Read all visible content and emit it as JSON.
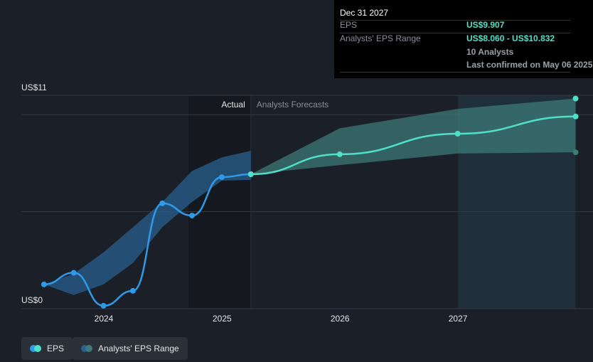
{
  "chart_data": {
    "type": "line",
    "y_unit_labels": [
      "US$0",
      "US$11"
    ],
    "ylim": [
      0,
      11
    ],
    "x_ticks": [
      "2024",
      "2025",
      "2026",
      "2027"
    ],
    "region_labels": {
      "actual": "Actual",
      "forecast": "Analysts Forecasts"
    },
    "series": [
      {
        "name": "EPS",
        "color": "#2f9be8",
        "points": [
          [
            "2023-06-30",
            1.25
          ],
          [
            "2023-09-30",
            1.85
          ],
          [
            "2023-12-31",
            0.15
          ],
          [
            "2024-03-31",
            0.92
          ],
          [
            "2024-06-30",
            5.43
          ],
          [
            "2024-09-30",
            4.8
          ],
          [
            "2024-12-31",
            6.78
          ],
          [
            "2025-03-31",
            6.93
          ]
        ]
      },
      {
        "color": "#4fe0c8",
        "points": [
          [
            "2025-03-31",
            6.93
          ],
          [
            "2025-12-31",
            7.96
          ],
          [
            "2026-12-31",
            9.02
          ],
          [
            "2027-12-31",
            9.907
          ]
        ]
      }
    ],
    "range_actual": [
      [
        "2023-06-30",
        1.25,
        1.25
      ],
      [
        "2023-09-30",
        0.7,
        1.8
      ],
      [
        "2023-12-31",
        1.25,
        2.9
      ],
      [
        "2024-03-31",
        2.35,
        4.2
      ],
      [
        "2024-06-30",
        4.2,
        5.5
      ],
      [
        "2024-09-30",
        5.5,
        7.1
      ],
      [
        "2024-12-31",
        6.6,
        7.8
      ],
      [
        "2025-03-31",
        6.64,
        8.14
      ]
    ],
    "range_forecast": [
      [
        "2025-03-31",
        6.93,
        6.93
      ],
      [
        "2025-12-31",
        7.4,
        9.3
      ],
      [
        "2026-12-31",
        8.0,
        10.3
      ],
      [
        "2027-12-31",
        8.06,
        10.832
      ]
    ]
  },
  "tooltip": {
    "date": "Dec 31 2027",
    "eps_label": "EPS",
    "eps_value": "US$9.907",
    "range_label": "Analysts' EPS Range",
    "range_value": "US$8.060 - US$10.832",
    "analysts": "10 Analysts",
    "confirmed": "Last confirmed on May 06 2025"
  },
  "legend": {
    "eps": "EPS",
    "range": "Analysts' EPS Range"
  },
  "colors": {
    "eps": "#2f9be8",
    "forecast": "#4fe0c8",
    "range_actual": "#2a5f8f",
    "range_forecast": "#3d7a78"
  }
}
